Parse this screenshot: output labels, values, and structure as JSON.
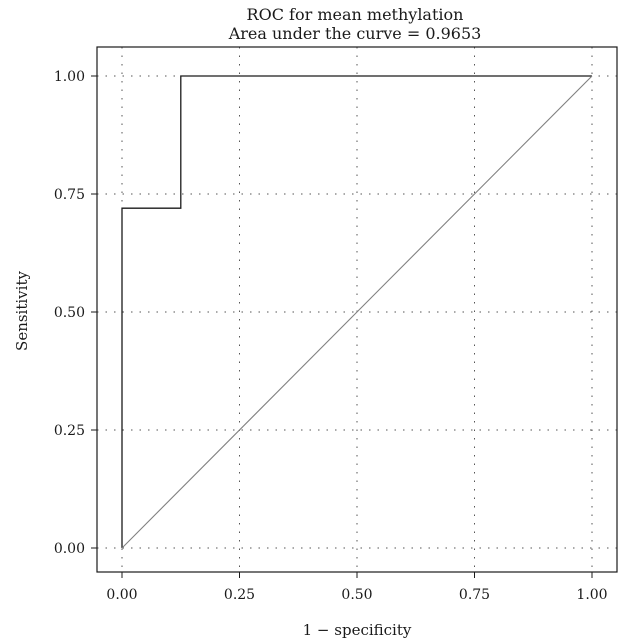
{
  "chart_data": {
    "type": "line",
    "title": "ROC for mean methylation",
    "subtitle": "Area under the curve = 0.9653",
    "xlabel": "1 − specificity",
    "ylabel": "Sensitivity",
    "xlim": [
      0,
      1
    ],
    "ylim": [
      0,
      1
    ],
    "x_ticks": [
      "0.00",
      "0.25",
      "0.50",
      "0.75",
      "1.00"
    ],
    "y_ticks": [
      "0.00",
      "0.25",
      "0.50",
      "0.75",
      "1.00"
    ],
    "grid": true,
    "series": [
      {
        "x": [
          0,
          0,
          0.125,
          0.125,
          1
        ],
        "y": [
          0,
          0.72,
          0.72,
          1,
          1
        ],
        "color": "#1a1a1a"
      },
      {
        "x": [
          0,
          1
        ],
        "y": [
          0,
          1
        ],
        "color": "#808080"
      }
    ]
  }
}
